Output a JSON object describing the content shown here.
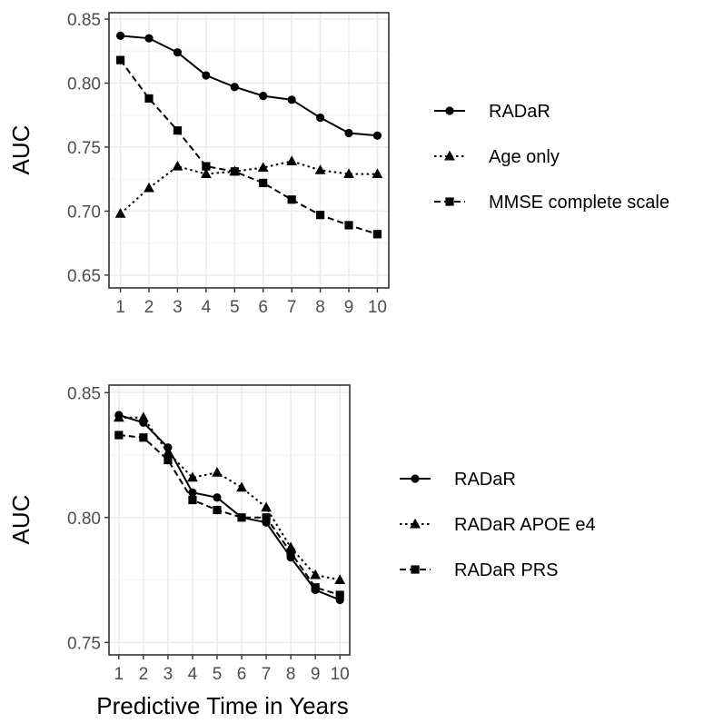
{
  "chart_data": [
    {
      "type": "line",
      "ylabel": "AUC",
      "xlabel": "",
      "x": [
        1,
        2,
        3,
        4,
        5,
        6,
        7,
        8,
        9,
        10
      ],
      "x_ticks": [
        "1",
        "2",
        "3",
        "4",
        "5",
        "6",
        "7",
        "8",
        "9",
        "10"
      ],
      "ylim": [
        0.64,
        0.855
      ],
      "y_ticks": [
        "0.65",
        "0.70",
        "0.75",
        "0.80",
        "0.85"
      ],
      "y_tick_values": [
        0.65,
        0.7,
        0.75,
        0.8,
        0.85
      ],
      "grid": true,
      "legend_position": "right",
      "series": [
        {
          "name": "RADaR",
          "marker": "circle",
          "line": "solid",
          "values": [
            0.837,
            0.835,
            0.824,
            0.806,
            0.797,
            0.79,
            0.787,
            0.773,
            0.761,
            0.759
          ]
        },
        {
          "name": "Age only",
          "marker": "triangle",
          "line": "dotted",
          "values": [
            0.698,
            0.718,
            0.735,
            0.729,
            0.731,
            0.734,
            0.739,
            0.732,
            0.729,
            0.729
          ]
        },
        {
          "name": "MMSE complete scale",
          "marker": "square",
          "line": "dashed",
          "values": [
            0.818,
            0.788,
            0.763,
            0.735,
            0.731,
            0.722,
            0.709,
            0.697,
            0.689,
            0.682
          ]
        }
      ]
    },
    {
      "type": "line",
      "ylabel": "AUC",
      "xlabel": "Predictive Time in Years",
      "x": [
        1,
        2,
        3,
        4,
        5,
        6,
        7,
        8,
        9,
        10
      ],
      "x_ticks": [
        "1",
        "2",
        "3",
        "4",
        "5",
        "6",
        "7",
        "8",
        "9",
        "10"
      ],
      "ylim": [
        0.745,
        0.853
      ],
      "y_ticks": [
        "0.75",
        "0.80",
        "0.85"
      ],
      "y_tick_values": [
        0.75,
        0.8,
        0.85
      ],
      "grid": true,
      "legend_position": "right",
      "series": [
        {
          "name": "RADaR",
          "marker": "circle",
          "line": "solid",
          "values": [
            0.841,
            0.838,
            0.828,
            0.81,
            0.808,
            0.8,
            0.798,
            0.784,
            0.771,
            0.767
          ]
        },
        {
          "name": "RADaR APOE e4",
          "marker": "triangle",
          "line": "dotted",
          "values": [
            0.84,
            0.84,
            0.826,
            0.816,
            0.818,
            0.812,
            0.804,
            0.788,
            0.777,
            0.775
          ]
        },
        {
          "name": "RADaR PRS",
          "marker": "square",
          "line": "dashed",
          "values": [
            0.833,
            0.832,
            0.823,
            0.807,
            0.803,
            0.8,
            0.8,
            0.786,
            0.772,
            0.769
          ]
        }
      ]
    }
  ]
}
